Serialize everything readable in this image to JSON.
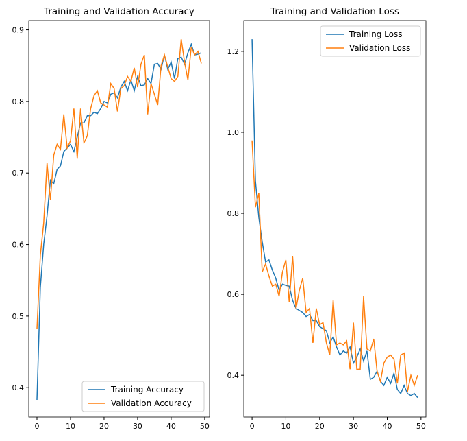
{
  "chart_data": [
    {
      "type": "line",
      "title": "Training and Validation Accuracy",
      "x": [
        0,
        1,
        2,
        3,
        4,
        5,
        6,
        7,
        8,
        9,
        10,
        11,
        12,
        13,
        14,
        15,
        16,
        17,
        18,
        19,
        20,
        21,
        22,
        23,
        24,
        25,
        26,
        27,
        28,
        29,
        30,
        31,
        32,
        33,
        34,
        35,
        36,
        37,
        38,
        39,
        40,
        41,
        42,
        43,
        44,
        45,
        46,
        47,
        48,
        49
      ],
      "series": [
        {
          "name": "Training Accuracy",
          "color": "#1f77b4",
          "values": [
            0.383,
            0.54,
            0.6,
            0.64,
            0.69,
            0.685,
            0.705,
            0.71,
            0.73,
            0.735,
            0.74,
            0.73,
            0.75,
            0.77,
            0.77,
            0.78,
            0.78,
            0.785,
            0.783,
            0.79,
            0.8,
            0.798,
            0.81,
            0.812,
            0.805,
            0.82,
            0.828,
            0.815,
            0.83,
            0.815,
            0.835,
            0.822,
            0.823,
            0.832,
            0.825,
            0.852,
            0.853,
            0.845,
            0.865,
            0.845,
            0.855,
            0.832,
            0.86,
            0.862,
            0.852,
            0.868,
            0.88,
            0.865,
            0.866,
            0.868
          ]
        },
        {
          "name": "Validation Accuracy",
          "color": "#ff7f0e",
          "values": [
            0.482,
            0.585,
            0.63,
            0.714,
            0.662,
            0.725,
            0.74,
            0.733,
            0.782,
            0.735,
            0.745,
            0.79,
            0.72,
            0.79,
            0.742,
            0.752,
            0.79,
            0.808,
            0.815,
            0.798,
            0.795,
            0.792,
            0.825,
            0.818,
            0.786,
            0.818,
            0.822,
            0.835,
            0.828,
            0.847,
            0.82,
            0.852,
            0.865,
            0.782,
            0.825,
            0.81,
            0.795,
            0.85,
            0.865,
            0.848,
            0.832,
            0.828,
            0.835,
            0.887,
            0.855,
            0.83,
            0.876,
            0.865,
            0.87,
            0.853
          ]
        }
      ],
      "xlim": [
        -2.45,
        51.45
      ],
      "xticks": [
        0,
        10,
        20,
        30,
        40,
        50
      ],
      "ylim": [
        0.359,
        0.913
      ],
      "yticks": [
        0.4,
        0.5,
        0.6,
        0.7,
        0.8,
        0.9
      ],
      "legend": "lower right"
    },
    {
      "type": "line",
      "title": "Training and Validation Loss",
      "x": [
        0,
        1,
        2,
        3,
        4,
        5,
        6,
        7,
        8,
        9,
        10,
        11,
        12,
        13,
        14,
        15,
        16,
        17,
        18,
        19,
        20,
        21,
        22,
        23,
        24,
        25,
        26,
        27,
        28,
        29,
        30,
        31,
        32,
        33,
        34,
        35,
        36,
        37,
        38,
        39,
        40,
        41,
        42,
        43,
        44,
        45,
        46,
        47,
        48,
        49
      ],
      "series": [
        {
          "name": "Training Loss",
          "color": "#1f77b4",
          "values": [
            1.23,
            0.88,
            0.79,
            0.73,
            0.68,
            0.685,
            0.66,
            0.64,
            0.61,
            0.625,
            0.622,
            0.62,
            0.585,
            0.565,
            0.56,
            0.555,
            0.545,
            0.55,
            0.535,
            0.535,
            0.52,
            0.515,
            0.51,
            0.48,
            0.495,
            0.47,
            0.45,
            0.46,
            0.455,
            0.47,
            0.43,
            0.445,
            0.465,
            0.435,
            0.46,
            0.39,
            0.395,
            0.41,
            0.385,
            0.375,
            0.395,
            0.38,
            0.405,
            0.365,
            0.355,
            0.375,
            0.355,
            0.35,
            0.355,
            0.345
          ]
        },
        {
          "name": "Validation Loss",
          "color": "#ff7f0e",
          "values": [
            0.98,
            0.815,
            0.85,
            0.655,
            0.675,
            0.645,
            0.62,
            0.625,
            0.595,
            0.655,
            0.685,
            0.58,
            0.695,
            0.565,
            0.61,
            0.64,
            0.555,
            0.565,
            0.48,
            0.565,
            0.525,
            0.53,
            0.48,
            0.45,
            0.585,
            0.475,
            0.48,
            0.475,
            0.485,
            0.415,
            0.53,
            0.415,
            0.415,
            0.595,
            0.465,
            0.46,
            0.49,
            0.41,
            0.385,
            0.43,
            0.445,
            0.45,
            0.44,
            0.38,
            0.45,
            0.455,
            0.36,
            0.4,
            0.375,
            0.4
          ]
        }
      ],
      "xlim": [
        -2.45,
        51.45
      ],
      "xticks": [
        0,
        10,
        20,
        30,
        40,
        50
      ],
      "ylim": [
        0.297,
        1.276
      ],
      "yticks": [
        0.4,
        0.6,
        0.8,
        {
          "value": 1,
          "label": "1.0"
        },
        1.2
      ],
      "legend": "upper right"
    }
  ]
}
